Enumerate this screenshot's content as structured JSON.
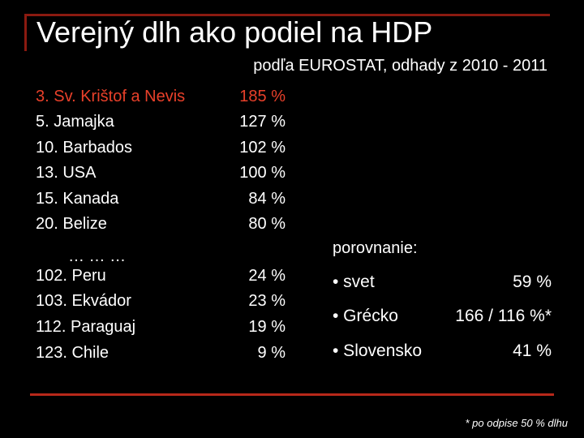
{
  "title": "Verejný dlh ako podiel na HDP",
  "subtitle": "podľa EUROSTAT, odhady z 2010 - 2011",
  "rows": [
    {
      "name": "3. Sv. Krištof a Nevis",
      "value": "185 %"
    },
    {
      "name": "5. Jamajka",
      "value": "127 %"
    },
    {
      "name": "10. Barbados",
      "value": "102 %"
    },
    {
      "name": "13. USA",
      "value": "100 %"
    },
    {
      "name": "15. Kanada",
      "value": "84 %"
    },
    {
      "name": "20. Belize",
      "value": "80 %"
    },
    {
      "name": "102. Peru",
      "value": "24 %"
    },
    {
      "name": "103. Ekvádor",
      "value": "23 %"
    },
    {
      "name": "112. Paraguaj",
      "value": "19 %"
    },
    {
      "name": "123. Chile",
      "value": "9 %"
    }
  ],
  "ellipsis": "… … …",
  "comparison": {
    "label": "porovnanie:",
    "items": [
      {
        "name": "• svet",
        "value": "59 %"
      },
      {
        "name": "• Grécko",
        "value": "166 / 116 %*"
      },
      {
        "name": "• Slovensko",
        "value": "41 %"
      }
    ]
  },
  "footnote": "* po odpise 50 % dlhu"
}
